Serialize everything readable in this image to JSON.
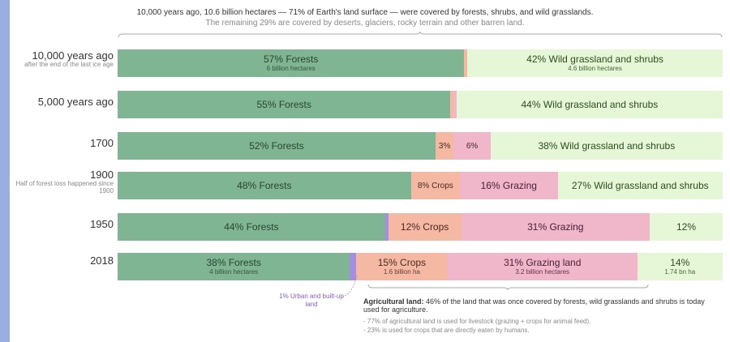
{
  "header": {
    "line1": "10,000 years ago, 10.6 billion hectares — 71% of Earth's land surface — were covered by forests, shrubs, and wild grasslands.",
    "line2": "The remaining 29% are covered by deserts, glaciers, rocky terrain and other barren land."
  },
  "colors": {
    "forest": "#7fb592",
    "wild": "#e5f7d6",
    "crops": "#f4b8a3",
    "grazing": "#f0b6c9",
    "urban": "#a58de0"
  },
  "chart_data": {
    "type": "bar",
    "orientation": "horizontal-stacked",
    "rows": [
      {
        "label": "10,000 years ago",
        "sublabel": "after the end of the last ice age",
        "segments": [
          {
            "cat": "forest",
            "value": 57,
            "label": "57% Forests",
            "sublabel": "6 billion hectares"
          },
          {
            "cat": "crops",
            "value": 0.5,
            "label": ""
          },
          {
            "cat": "wild",
            "value": 42,
            "label": "42% Wild grassland and shrubs",
            "sublabel": "4.6 billion hectares"
          }
        ]
      },
      {
        "label": "5,000 years ago",
        "sublabel": "",
        "segments": [
          {
            "cat": "forest",
            "value": 55,
            "label": "55% Forests"
          },
          {
            "cat": "crops",
            "value": 0.5,
            "label": ""
          },
          {
            "cat": "grazing",
            "value": 0.5,
            "label": ""
          },
          {
            "cat": "wild",
            "value": 44,
            "label": "44% Wild grassland and shrubs"
          }
        ]
      },
      {
        "label": "1700",
        "sublabel": "",
        "segments": [
          {
            "cat": "forest",
            "value": 52,
            "label": "52% Forests"
          },
          {
            "cat": "crops",
            "value": 3,
            "label": "3%"
          },
          {
            "cat": "grazing",
            "value": 6,
            "label": "6%"
          },
          {
            "cat": "wild",
            "value": 38,
            "label": "38% Wild grassland and shrubs"
          }
        ]
      },
      {
        "label": "1900",
        "sublabel": "Half of forest loss happened since 1900",
        "segments": [
          {
            "cat": "forest",
            "value": 48,
            "label": "48% Forests"
          },
          {
            "cat": "crops",
            "value": 8,
            "label": "8% Crops"
          },
          {
            "cat": "grazing",
            "value": 16,
            "label": "16% Grazing"
          },
          {
            "cat": "wild",
            "value": 27,
            "label": "27% Wild grassland and shrubs"
          }
        ]
      },
      {
        "label": "1950",
        "sublabel": "",
        "segments": [
          {
            "cat": "forest",
            "value": 44,
            "label": "44% Forests"
          },
          {
            "cat": "urban",
            "value": 0.5,
            "label": ""
          },
          {
            "cat": "crops",
            "value": 12,
            "label": "12% Crops"
          },
          {
            "cat": "grazing",
            "value": 31,
            "label": "31% Grazing"
          },
          {
            "cat": "wild",
            "value": 12,
            "label": "12%"
          }
        ]
      },
      {
        "label": "2018",
        "sublabel": "",
        "segments": [
          {
            "cat": "forest",
            "value": 38,
            "label": "38% Forests",
            "sublabel": "4 billion hectares"
          },
          {
            "cat": "urban",
            "value": 1,
            "label": ""
          },
          {
            "cat": "crops",
            "value": 15,
            "label": "15% Crops",
            "sublabel": "1.6 billion ha"
          },
          {
            "cat": "grazing",
            "value": 31,
            "label": "31% Grazing land",
            "sublabel": "3.2 billion hectares"
          },
          {
            "cat": "wild",
            "value": 14,
            "label": "14%",
            "sublabel": "1.74 bn ha"
          }
        ]
      }
    ]
  },
  "annotations": {
    "urban": "1% Urban and built-up land",
    "agri_bold": "Agricultural land:",
    "agri_text": "46% of the land that was once covered by forests, wild grasslands and shrubs is today used for agriculture.",
    "note1": "- 77% of agricultural land is used for livestock (grazing + crops for animal feed).",
    "note2": "- 23% is used for crops that are directly eaten by humans."
  }
}
